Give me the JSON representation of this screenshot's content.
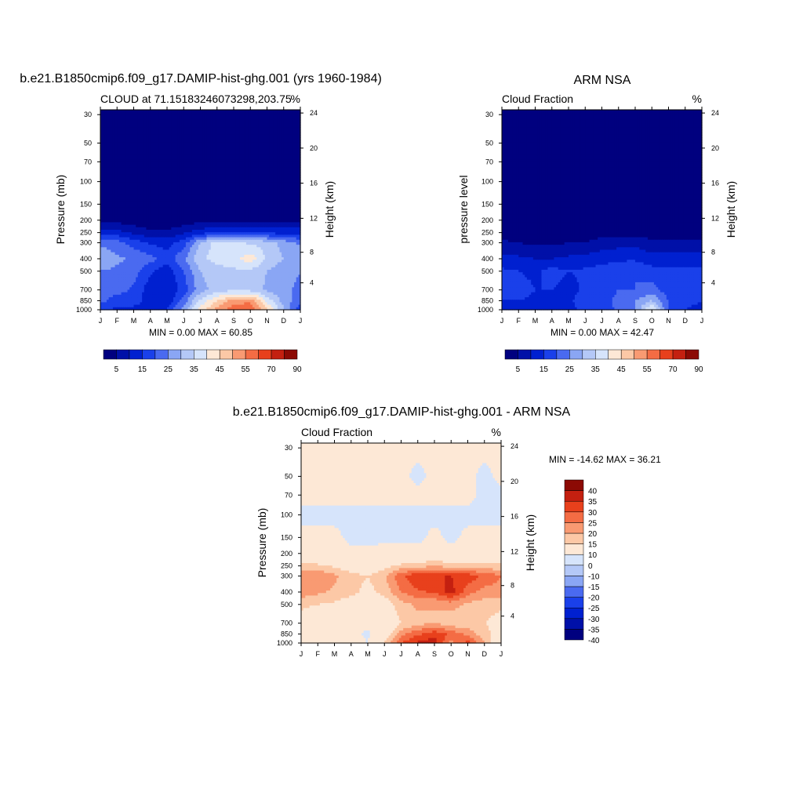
{
  "panels": [
    {
      "title": "b.e21.B1850cmip6.f09_g17.DAMIP-hist-ghg.001 (yrs 1960-1984)",
      "left_label": "CLOUD at 71.15183246073298,203.75",
      "right_label": "%",
      "ylabel": "Pressure (mb)",
      "y2label": "Height (km)",
      "minmax": "MIN =   0.00 MAX =  60.85"
    },
    {
      "title": "ARM NSA",
      "left_label": "Cloud Fraction",
      "right_label": "%",
      "ylabel": "pressure level",
      "y2label": "Height (km)",
      "minmax": "MIN =   0.00 MAX =  42.47"
    },
    {
      "title": "b.e21.B1850cmip6.f09_g17.DAMIP-hist-ghg.001 - ARM NSA",
      "left_label": "Cloud Fraction",
      "right_label": "%",
      "ylabel": "Pressure (mb)",
      "y2label": "Height (km)",
      "minmax": "MIN = -14.62 MAX =  36.21"
    }
  ],
  "chart_data": [
    {
      "type": "heatmap",
      "title": "b.e21.B1850cmip6.f09_g17.DAMIP-hist-ghg.001 (yrs 1960-1984)",
      "subtitle": "CLOUD at 71.15183246073298,203.75",
      "units": "%",
      "xlabel": "",
      "ylabel": "Pressure (mb)",
      "y2label": "Height (km)",
      "x_ticks": [
        "J",
        "F",
        "M",
        "A",
        "M",
        "J",
        "J",
        "A",
        "S",
        "O",
        "N",
        "D",
        "J"
      ],
      "y_ticks": [
        30,
        50,
        70,
        100,
        150,
        200,
        250,
        300,
        400,
        500,
        700,
        850,
        1000
      ],
      "y2_ticks": [
        4,
        8,
        12,
        16,
        20,
        24
      ],
      "ylim": [
        30,
        1000
      ],
      "min": 0.0,
      "max": 60.85,
      "pressure_levels": [
        30,
        50,
        70,
        100,
        150,
        200,
        250,
        300,
        400,
        500,
        700,
        850,
        1000
      ],
      "values": [
        [
          0,
          0,
          0,
          0,
          0,
          0,
          0,
          0,
          0,
          0,
          0,
          0,
          0
        ],
        [
          0,
          0,
          0,
          0,
          0,
          0,
          0,
          0,
          0,
          0,
          0,
          0,
          0
        ],
        [
          0,
          0,
          0,
          0,
          0,
          0,
          0,
          0,
          0,
          0,
          0,
          0,
          0
        ],
        [
          0,
          0,
          0,
          0,
          0,
          0,
          0,
          0,
          0,
          0,
          0,
          0,
          0
        ],
        [
          0,
          0,
          0,
          0,
          0,
          0,
          0,
          0,
          0,
          0,
          0,
          0,
          0
        ],
        [
          4,
          3,
          2,
          1,
          1,
          2,
          3,
          3,
          3,
          3,
          4,
          4,
          4
        ],
        [
          13,
          12,
          9,
          6,
          6,
          9,
          13,
          15,
          16,
          15,
          14,
          13,
          13
        ],
        [
          24,
          22,
          18,
          14,
          13,
          18,
          30,
          38,
          37,
          34,
          33,
          28,
          24
        ],
        [
          29,
          26,
          24,
          22,
          17,
          24,
          34,
          37,
          38,
          43,
          34,
          30,
          29
        ],
        [
          25,
          24,
          22,
          16,
          12,
          20,
          30,
          33,
          34,
          34,
          30,
          27,
          25
        ],
        [
          24,
          22,
          19,
          12,
          10,
          17,
          28,
          32,
          34,
          33,
          29,
          26,
          24
        ],
        [
          22,
          17,
          18,
          12,
          11,
          22,
          36,
          45,
          52,
          54,
          38,
          28,
          22
        ],
        [
          16,
          14,
          13,
          13,
          15,
          28,
          42,
          52,
          58,
          60,
          46,
          30,
          16
        ]
      ],
      "levels": [
        5,
        10,
        15,
        20,
        25,
        30,
        35,
        40,
        45,
        50,
        55,
        60,
        70,
        80,
        90
      ],
      "colorbar_labels": [
        "5",
        "15",
        "25",
        "35",
        "45",
        "55",
        "70",
        "90"
      ]
    },
    {
      "type": "heatmap",
      "title": "ARM NSA",
      "subtitle": "Cloud Fraction",
      "units": "%",
      "xlabel": "",
      "ylabel": "pressure level",
      "y2label": "Height (km)",
      "x_ticks": [
        "J",
        "F",
        "M",
        "A",
        "M",
        "J",
        "J",
        "A",
        "S",
        "O",
        "N",
        "D",
        "J"
      ],
      "y_ticks": [
        30,
        50,
        70,
        100,
        150,
        200,
        250,
        300,
        400,
        500,
        700,
        850,
        1000
      ],
      "y2_ticks": [
        4,
        8,
        12,
        16,
        20,
        24
      ],
      "ylim": [
        30,
        1000
      ],
      "min": 0.0,
      "max": 42.47,
      "pressure_levels": [
        30,
        50,
        70,
        100,
        150,
        200,
        250,
        300,
        400,
        500,
        700,
        850,
        1000
      ],
      "values": [
        [
          0,
          0,
          0,
          0,
          0,
          0,
          0,
          0,
          0,
          0,
          0,
          0,
          0
        ],
        [
          0,
          0,
          0,
          0,
          0,
          0,
          0,
          0,
          0,
          0,
          0,
          0,
          0
        ],
        [
          0,
          0,
          0,
          0,
          0,
          0,
          0,
          0,
          0,
          0,
          0,
          0,
          0
        ],
        [
          0,
          0,
          0,
          0,
          0,
          0,
          0,
          0,
          0,
          0,
          0,
          0,
          0
        ],
        [
          0,
          0,
          0,
          0,
          0,
          0,
          0,
          0,
          0,
          0,
          0,
          0,
          0
        ],
        [
          1,
          1,
          1,
          1,
          1,
          1,
          1,
          1,
          1,
          1,
          1,
          1,
          1
        ],
        [
          2,
          2,
          1,
          1,
          2,
          2,
          3,
          3,
          3,
          2,
          2,
          2,
          2
        ],
        [
          6,
          5,
          4,
          4,
          5,
          5,
          7,
          8,
          9,
          6,
          6,
          6,
          6
        ],
        [
          12,
          11,
          10,
          10,
          11,
          12,
          13,
          14,
          14,
          12,
          12,
          12,
          12
        ],
        [
          16,
          15,
          14,
          17,
          15,
          16,
          17,
          19,
          20,
          17,
          16,
          16,
          16
        ],
        [
          16,
          17,
          15,
          15,
          13,
          16,
          17,
          20,
          20,
          22,
          17,
          16,
          16
        ],
        [
          15,
          15,
          14,
          13,
          14,
          18,
          17,
          22,
          25,
          30,
          20,
          16,
          15
        ],
        [
          14,
          14,
          13,
          12,
          13,
          17,
          17,
          21,
          25,
          42,
          19,
          15,
          14
        ]
      ],
      "levels": [
        5,
        10,
        15,
        20,
        25,
        30,
        35,
        40,
        45,
        50,
        55,
        60,
        70,
        80,
        90
      ],
      "colorbar_labels": [
        "5",
        "15",
        "25",
        "35",
        "45",
        "55",
        "70",
        "90"
      ]
    },
    {
      "type": "heatmap",
      "title": "b.e21.B1850cmip6.f09_g17.DAMIP-hist-ghg.001 - ARM NSA",
      "subtitle": "Cloud Fraction",
      "units": "%",
      "xlabel": "",
      "ylabel": "Pressure (mb)",
      "y2label": "Height (km)",
      "x_ticks": [
        "J",
        "F",
        "M",
        "A",
        "M",
        "J",
        "J",
        "A",
        "S",
        "O",
        "N",
        "D",
        "J"
      ],
      "y_ticks": [
        30,
        50,
        70,
        100,
        150,
        200,
        250,
        300,
        400,
        500,
        700,
        850,
        1000
      ],
      "y2_ticks": [
        4,
        8,
        12,
        16,
        20,
        24
      ],
      "ylim": [
        30,
        1000
      ],
      "min": -14.62,
      "max": 36.21,
      "pressure_levels": [
        30,
        50,
        70,
        100,
        150,
        200,
        250,
        300,
        400,
        500,
        700,
        850,
        1000
      ],
      "values": [
        [
          2,
          2,
          2,
          2,
          2,
          2,
          2,
          2,
          2,
          2,
          2,
          2,
          2
        ],
        [
          2,
          2,
          2,
          2,
          2,
          2,
          2,
          -2,
          2,
          2,
          2,
          -2,
          2
        ],
        [
          2,
          2,
          2,
          2,
          2,
          2,
          2,
          2,
          2,
          2,
          2,
          -2,
          -2
        ],
        [
          -2,
          -2,
          -2,
          -2,
          -2,
          -2,
          -2,
          -2,
          -2,
          -2,
          -2,
          -2,
          -2
        ],
        [
          2,
          2,
          2,
          -2,
          -2,
          -2,
          -2,
          -2,
          2,
          -2,
          2,
          2,
          2
        ],
        [
          3,
          3,
          3,
          2,
          2,
          3,
          3,
          3,
          3,
          3,
          3,
          3,
          3
        ],
        [
          12,
          11,
          9,
          6,
          5,
          8,
          11,
          13,
          14,
          13,
          12,
          11,
          12
        ],
        [
          20,
          20,
          16,
          12,
          10,
          14,
          24,
          30,
          30,
          30,
          28,
          24,
          20
        ],
        [
          18,
          16,
          14,
          12,
          8,
          12,
          20,
          24,
          26,
          32,
          22,
          18,
          18
        ],
        [
          11,
          10,
          9,
          6,
          3,
          6,
          13,
          16,
          15,
          17,
          14,
          12,
          11
        ],
        [
          8,
          6,
          5,
          3,
          1,
          3,
          10,
          13,
          15,
          11,
          12,
          10,
          8
        ],
        [
          7,
          3,
          4,
          2,
          -1,
          4,
          18,
          24,
          28,
          24,
          18,
          12,
          7
        ],
        [
          2,
          1,
          2,
          2,
          0,
          11,
          25,
          31,
          33,
          18,
          27,
          15,
          2
        ]
      ],
      "levels": [
        -40,
        -35,
        -30,
        -25,
        -20,
        -15,
        -10,
        0,
        10,
        15,
        20,
        25,
        30,
        35,
        40
      ],
      "colorbar_labels": [
        "40",
        "35",
        "30",
        "25",
        "20",
        "15",
        "10",
        "0",
        "-10",
        "-15",
        "-20",
        "-25",
        "-30",
        "-35",
        "-40"
      ]
    }
  ],
  "colors": {
    "seq": [
      "#00007f",
      "#0010a8",
      "#0020d0",
      "#1a40ea",
      "#4a6af0",
      "#8aa6f4",
      "#b4c8f7",
      "#d6e4fb",
      "#fde8d6",
      "#fcc8a6",
      "#f99a72",
      "#f46c44",
      "#e8401c",
      "#c42010",
      "#8c0a04"
    ],
    "div": [
      "#00007f",
      "#0010a8",
      "#0020d0",
      "#1a40ea",
      "#4a6af0",
      "#8aa6f4",
      "#b4c8f7",
      "#d6e4fb",
      "#fde8d6",
      "#fcc8a6",
      "#f99a72",
      "#f46c44",
      "#e8401c",
      "#c42010",
      "#8c0a04"
    ]
  }
}
